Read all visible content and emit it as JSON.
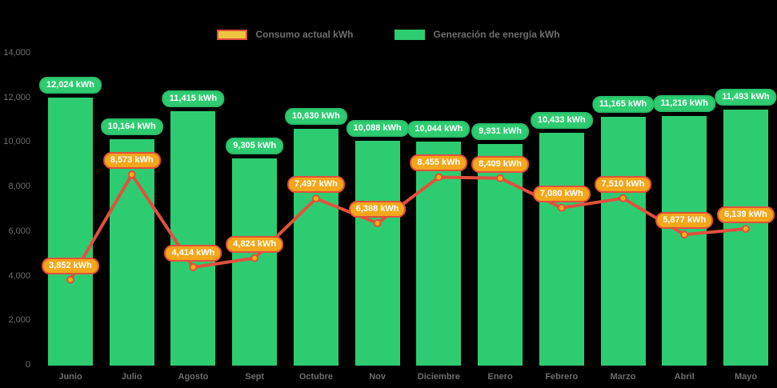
{
  "legend": {
    "consumo_label": "Consumo actual kWh",
    "generacion_label": "Generación de energía kWh"
  },
  "colors": {
    "background": "#000000",
    "bar_fill": "#2ecc71",
    "bar_label_bg": "#2ecc71",
    "bar_label_border": "#29bd68",
    "line": "#e2503d",
    "point_fill": "#f1b211",
    "consumption_label_bg": "#f3a71b",
    "consumption_label_border": "#e2503d",
    "legend_consumo_fill": "#eec53f",
    "legend_consumo_border": "#e2503d",
    "legend_generacion_fill": "#2ecc71",
    "axis_text": "#6e6e6e",
    "pill_text": "#ffffff"
  },
  "chart_data": {
    "type": "bar",
    "subtype": "bar-with-line-overlay",
    "categories": [
      "Junio",
      "Julio",
      "Agosto",
      "Sept",
      "Octubre",
      "Nov",
      "Diciembre",
      "Enero",
      "Febrero",
      "Marzo",
      "Abril",
      "Mayo"
    ],
    "series": [
      {
        "name": "Generación de energía kWh",
        "type": "bar",
        "values": [
          12024,
          10164,
          11415,
          9305,
          10630,
          10088,
          10044,
          9931,
          10433,
          11165,
          11216,
          11493
        ],
        "labels": [
          "12,024 kWh",
          "10,164 kWh",
          "11,415 kWh",
          "9,305 kWh",
          "10,630 kWh",
          "10,088 kWh",
          "10,044 kWh",
          "9,931 kWh",
          "10,433 kWh",
          "11,165 kWh",
          "11,216 kWh",
          "11,493 kWh"
        ]
      },
      {
        "name": "Consumo actual kWh",
        "type": "line",
        "values": [
          3852,
          8573,
          4414,
          4824,
          7497,
          6388,
          8455,
          8409,
          7080,
          7510,
          5877,
          6139
        ],
        "labels": [
          "3,852 kWh",
          "8,573 kWh",
          "4,414 kWh",
          "4,824 kWh",
          "7,497 kWh",
          "6,388 kWh",
          "8,455 kWh",
          "8,409 kWh",
          "7,080 kWh",
          "7,510 kWh",
          "5,877 kWh",
          "6,139 kWh"
        ]
      }
    ],
    "title": "",
    "xlabel": "",
    "ylabel": "",
    "ylim": [
      0,
      14000
    ],
    "yticks": [
      {
        "value": 0,
        "label": "0"
      },
      {
        "value": 2000,
        "label": "2,000"
      },
      {
        "value": 4000,
        "label": "4,000"
      },
      {
        "value": 6000,
        "label": "6,000"
      },
      {
        "value": 8000,
        "label": "8,000"
      },
      {
        "value": 10000,
        "label": "10,000"
      },
      {
        "value": 12000,
        "label": "12,000"
      },
      {
        "value": 14000,
        "label": "14,000"
      }
    ],
    "grid": false,
    "legend_position": "top"
  }
}
